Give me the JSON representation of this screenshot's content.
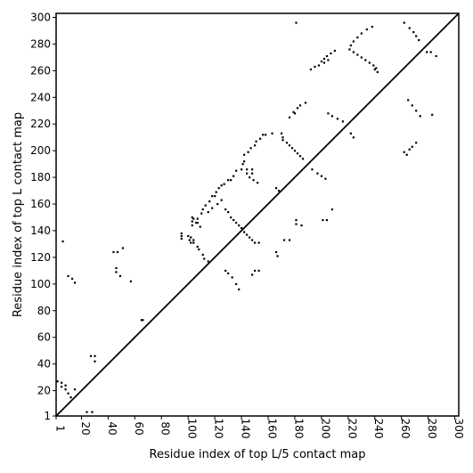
{
  "chart_data": {
    "type": "scatter",
    "title": "",
    "xlabel": "Residue index of top L/5 contact map",
    "ylabel": "Residue index of top L contact map",
    "xlim": [
      1,
      303
    ],
    "ylim": [
      1,
      303
    ],
    "x_ticks": [
      1,
      20,
      40,
      60,
      80,
      100,
      120,
      140,
      160,
      180,
      200,
      220,
      240,
      260,
      280,
      300
    ],
    "y_ticks": [
      1,
      20,
      40,
      60,
      80,
      100,
      120,
      140,
      160,
      180,
      200,
      220,
      240,
      260,
      280,
      300
    ],
    "grid": false,
    "legend": "none",
    "colors": {
      "points": "#000000",
      "diagonal": "#000000",
      "frame": "#000000"
    },
    "diagonal": {
      "from": [
        1,
        1
      ],
      "to": [
        303,
        303
      ]
    },
    "series": [
      {
        "region": "upper-left (top L/5)",
        "points": [
          [
            6,
            132
          ],
          [
            10,
            106
          ],
          [
            13,
            104
          ],
          [
            15,
            101
          ],
          [
            44,
            124
          ],
          [
            47,
            124
          ],
          [
            46,
            112
          ],
          [
            46,
            109
          ],
          [
            51,
            127
          ],
          [
            49,
            106
          ],
          [
            57,
            102
          ],
          [
            95,
            138
          ],
          [
            95,
            136
          ],
          [
            95,
            134
          ],
          [
            102,
            135
          ],
          [
            101,
            133
          ],
          [
            104,
            133
          ],
          [
            104,
            131
          ],
          [
            103,
            150
          ],
          [
            103,
            147
          ],
          [
            103,
            144
          ],
          [
            107,
            149
          ],
          [
            107,
            146
          ],
          [
            110,
            153
          ],
          [
            111,
            156
          ],
          [
            113,
            159
          ],
          [
            116,
            162
          ],
          [
            118,
            166
          ],
          [
            120,
            166
          ],
          [
            121,
            169
          ],
          [
            123,
            172
          ],
          [
            125,
            174
          ],
          [
            127,
            175
          ],
          [
            130,
            178
          ],
          [
            132,
            178
          ],
          [
            134,
            181
          ],
          [
            136,
            185
          ],
          [
            140,
            186
          ],
          [
            141,
            190
          ],
          [
            142,
            192
          ],
          [
            144,
            186
          ],
          [
            144,
            183
          ],
          [
            148,
            186
          ],
          [
            148,
            183
          ],
          [
            146,
            180
          ],
          [
            149,
            178
          ],
          [
            152,
            176
          ],
          [
            142,
            197
          ],
          [
            145,
            199
          ],
          [
            147,
            202
          ],
          [
            150,
            204
          ],
          [
            151,
            207
          ],
          [
            154,
            209
          ],
          [
            156,
            212
          ],
          [
            158,
            212
          ],
          [
            163,
            213
          ],
          [
            170,
            213
          ],
          [
            171,
            210
          ],
          [
            171,
            208
          ],
          [
            174,
            206
          ],
          [
            176,
            204
          ],
          [
            178,
            202
          ],
          [
            180,
            200
          ],
          [
            182,
            198
          ],
          [
            184,
            196
          ],
          [
            186,
            194
          ],
          [
            176,
            225
          ],
          [
            179,
            229
          ],
          [
            182,
            232
          ],
          [
            184,
            234
          ],
          [
            188,
            236
          ],
          [
            180,
            228
          ],
          [
            192,
            261
          ],
          [
            195,
            263
          ],
          [
            198,
            264
          ],
          [
            200,
            267
          ],
          [
            202,
            269
          ],
          [
            204,
            271
          ],
          [
            207,
            273
          ],
          [
            210,
            275
          ],
          [
            202,
            266
          ],
          [
            205,
            268
          ],
          [
            222,
            279
          ],
          [
            224,
            282
          ],
          [
            227,
            285
          ],
          [
            230,
            288
          ],
          [
            234,
            291
          ],
          [
            238,
            293
          ],
          [
            181,
            296
          ],
          [
            262,
            296
          ],
          [
            266,
            292
          ],
          [
            269,
            289
          ],
          [
            271,
            286
          ],
          [
            273,
            283
          ]
        ]
      },
      {
        "region": "lower-right (top L)",
        "points": [
          [
            2,
            27
          ],
          [
            5,
            26
          ],
          [
            5,
            23
          ],
          [
            8,
            24
          ],
          [
            8,
            21
          ],
          [
            10,
            18
          ],
          [
            12,
            15
          ],
          [
            15,
            21
          ],
          [
            24,
            4
          ],
          [
            28,
            4
          ],
          [
            27,
            46
          ],
          [
            30,
            46
          ],
          [
            30,
            42
          ],
          [
            65,
            73
          ],
          [
            66,
            73
          ],
          [
            100,
            136
          ],
          [
            102,
            131
          ],
          [
            107,
            128
          ],
          [
            108,
            126
          ],
          [
            111,
            122
          ],
          [
            112,
            119
          ],
          [
            115,
            117
          ],
          [
            104,
            149
          ],
          [
            106,
            146
          ],
          [
            109,
            143
          ],
          [
            115,
            154
          ],
          [
            118,
            157
          ],
          [
            122,
            160
          ],
          [
            125,
            163
          ],
          [
            128,
            156
          ],
          [
            130,
            154
          ],
          [
            132,
            150
          ],
          [
            134,
            148
          ],
          [
            136,
            146
          ],
          [
            138,
            144
          ],
          [
            140,
            142
          ],
          [
            128,
            110
          ],
          [
            130,
            108
          ],
          [
            133,
            105
          ],
          [
            136,
            100
          ],
          [
            138,
            96
          ],
          [
            142,
            139
          ],
          [
            144,
            137
          ],
          [
            146,
            135
          ],
          [
            148,
            133
          ],
          [
            150,
            131
          ],
          [
            153,
            131
          ],
          [
            150,
            110
          ],
          [
            153,
            110
          ],
          [
            148,
            107
          ],
          [
            166,
            124
          ],
          [
            167,
            121
          ],
          [
            172,
            133
          ],
          [
            176,
            133
          ],
          [
            166,
            172
          ],
          [
            168,
            170
          ],
          [
            181,
            148
          ],
          [
            181,
            145
          ],
          [
            185,
            144
          ],
          [
            193,
            186
          ],
          [
            197,
            183
          ],
          [
            200,
            181
          ],
          [
            203,
            179
          ],
          [
            201,
            148
          ],
          [
            204,
            148
          ],
          [
            208,
            156
          ],
          [
            205,
            228
          ],
          [
            208,
            226
          ],
          [
            212,
            224
          ],
          [
            216,
            222
          ],
          [
            222,
            213
          ],
          [
            224,
            210
          ],
          [
            221,
            276
          ],
          [
            224,
            274
          ],
          [
            227,
            272
          ],
          [
            230,
            270
          ],
          [
            233,
            268
          ],
          [
            236,
            266
          ],
          [
            239,
            264
          ],
          [
            240,
            261
          ],
          [
            242,
            259
          ],
          [
            241,
            262
          ],
          [
            262,
            199
          ],
          [
            264,
            197
          ],
          [
            266,
            201
          ],
          [
            268,
            203
          ],
          [
            271,
            206
          ],
          [
            265,
            238
          ],
          [
            268,
            234
          ],
          [
            271,
            230
          ],
          [
            274,
            226
          ],
          [
            283,
            227
          ],
          [
            279,
            274
          ],
          [
            282,
            274
          ],
          [
            286,
            271
          ]
        ]
      }
    ]
  }
}
